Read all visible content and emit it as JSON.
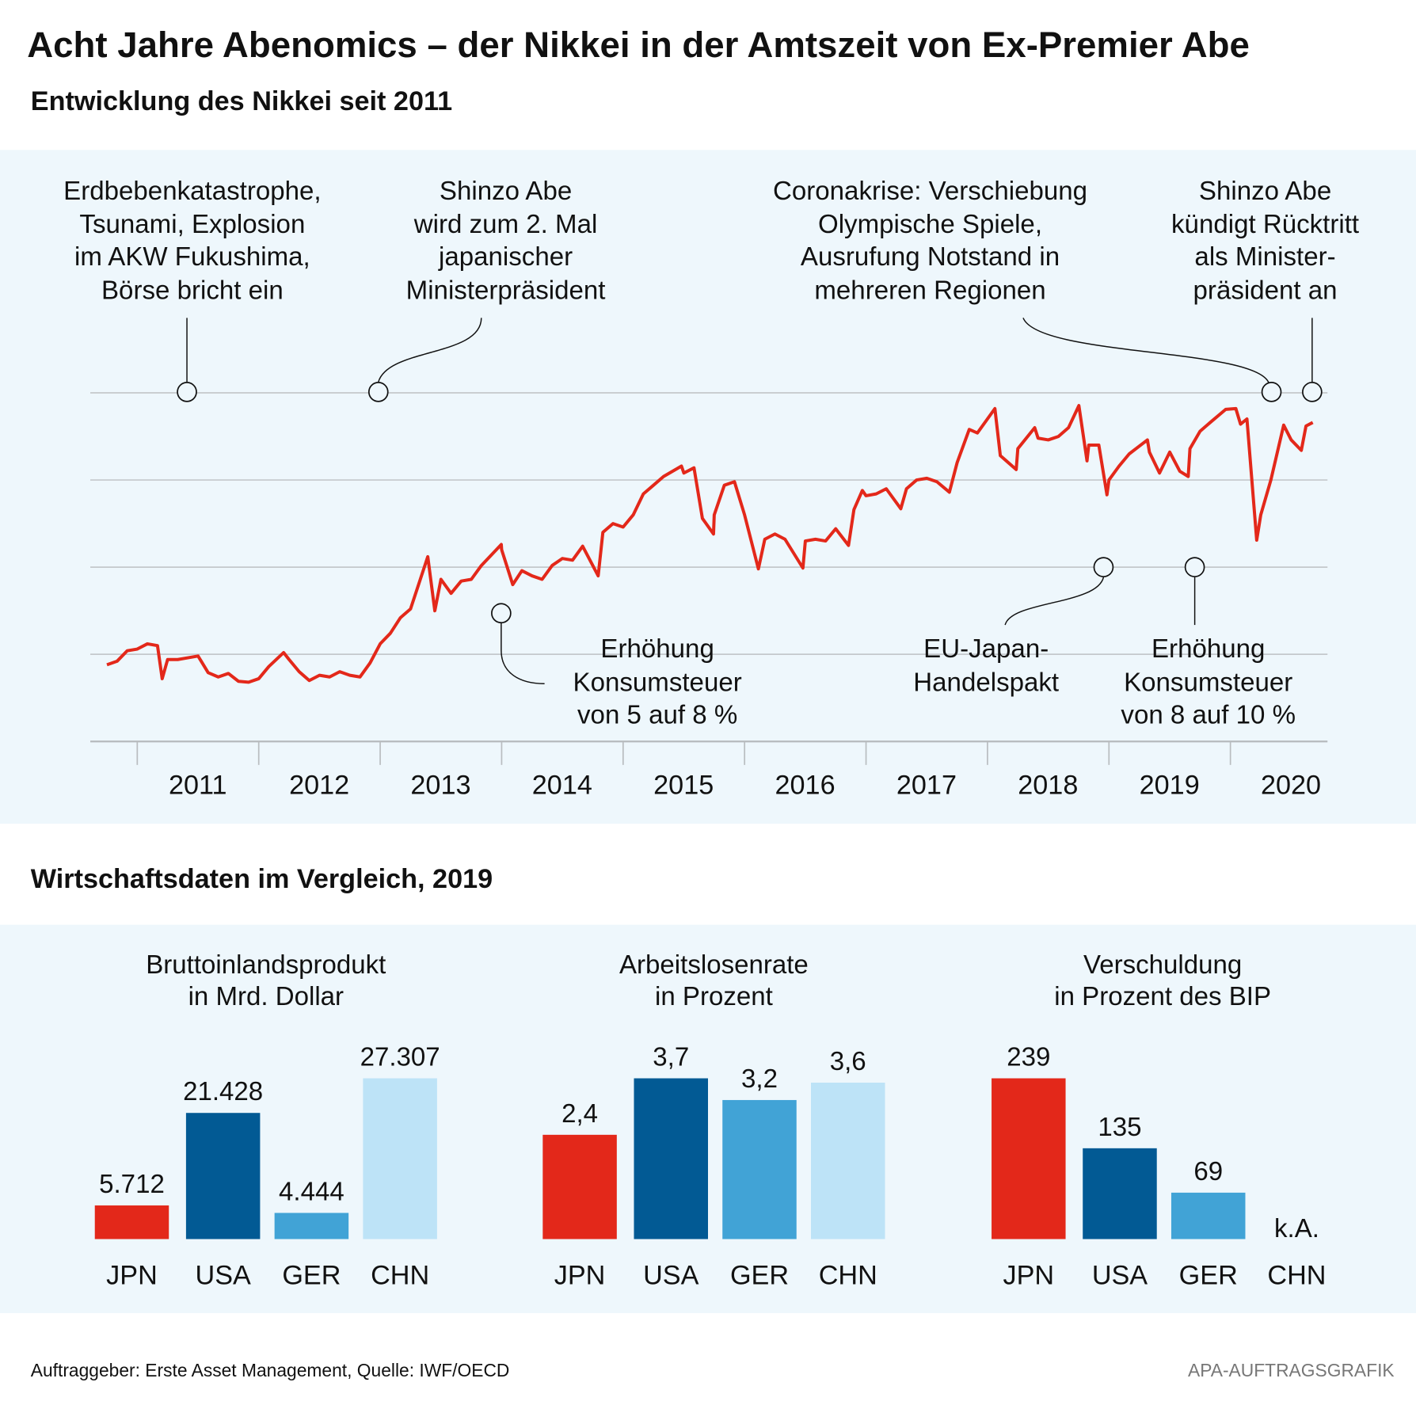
{
  "title": "Acht Jahre Abenomics – der Nikkei in der Amtszeit von Ex-Premier Abe",
  "section1_title": "Entwicklung des Nikkei seit 2011",
  "section2_title": "Wirtschaftsdaten im Vergleich, 2019",
  "annotations": {
    "fukushima": [
      "Erdbebenkatastrophe,",
      "Tsunami, Explosion",
      "im AKW Fukushima,",
      "Börse bricht ein"
    ],
    "abe_second_term": [
      "Shinzo Abe",
      "wird zum 2. Mal",
      "japanischer",
      "Ministerpräsident"
    ],
    "corona": [
      "Coronakrise: Verschiebung",
      "Olympische Spiele,",
      "Ausrufung Notstand in",
      "mehreren Regionen"
    ],
    "abe_resignation": [
      "Shinzo Abe",
      "kündigt Rücktritt",
      "als Minister-",
      "präsident an"
    ],
    "tax_2014": [
      "Erhöhung",
      "Konsumsteuer",
      "von 5 auf 8 %"
    ],
    "eu_japan": [
      "EU-Japan-",
      "Handelspakt"
    ],
    "tax_2019": [
      "Erhöhung",
      "Konsumsteuer",
      "von 8 auf 10 %"
    ]
  },
  "footer": {
    "source": "Auftraggeber: Erste Asset Management, Quelle: IWF/OECD",
    "credit": "APA-AUFTRAGSGRAFIK"
  },
  "colors": {
    "line": "#e3281a",
    "JPN": "#e3281a",
    "USA": "#025a94",
    "GER": "#41a3d6",
    "CHN": "#bde3f7",
    "panel": "#eef7fc",
    "grid": "#c4c8cb"
  },
  "chart_data": [
    {
      "type": "line",
      "title": "",
      "xlabel": "",
      "ylabel": "",
      "ylim": [
        5000,
        25000
      ],
      "grid": true,
      "x_ticks": [
        "2011",
        "2012",
        "2013",
        "2014",
        "2015",
        "2016",
        "2017",
        "2018",
        "2019",
        "2020"
      ],
      "series": [
        {
          "points": [
            [
              "2010-10-01",
              9400
            ],
            [
              "2010-11-01",
              9600
            ],
            [
              "2010-12-01",
              10200
            ],
            [
              "2011-01-01",
              10300
            ],
            [
              "2011-02-01",
              10600
            ],
            [
              "2011-03-01",
              10500
            ],
            [
              "2011-03-15",
              8600
            ],
            [
              "2011-04-01",
              9700
            ],
            [
              "2011-05-01",
              9700
            ],
            [
              "2011-06-01",
              9800
            ],
            [
              "2011-07-01",
              9900
            ],
            [
              "2011-08-01",
              8950
            ],
            [
              "2011-09-01",
              8700
            ],
            [
              "2011-10-01",
              8900
            ],
            [
              "2011-11-01",
              8450
            ],
            [
              "2011-12-01",
              8400
            ],
            [
              "2012-01-01",
              8600
            ],
            [
              "2012-02-01",
              9300
            ],
            [
              "2012-03-15",
              10100
            ],
            [
              "2012-04-01",
              9700
            ],
            [
              "2012-05-01",
              9000
            ],
            [
              "2012-06-01",
              8500
            ],
            [
              "2012-07-01",
              8800
            ],
            [
              "2012-08-01",
              8700
            ],
            [
              "2012-09-01",
              9000
            ],
            [
              "2012-10-01",
              8800
            ],
            [
              "2012-11-01",
              8700
            ],
            [
              "2012-12-01",
              9500
            ],
            [
              "2013-01-01",
              10600
            ],
            [
              "2013-02-01",
              11200
            ],
            [
              "2013-03-01",
              12100
            ],
            [
              "2013-04-01",
              12600
            ],
            [
              "2013-05-22",
              15600
            ],
            [
              "2013-06-13",
              12500
            ],
            [
              "2013-07-01",
              14300
            ],
            [
              "2013-08-01",
              13500
            ],
            [
              "2013-09-01",
              14200
            ],
            [
              "2013-10-01",
              14300
            ],
            [
              "2013-11-01",
              15100
            ],
            [
              "2013-12-30",
              16300
            ],
            [
              "2014-01-01",
              16000
            ],
            [
              "2014-02-04",
              14000
            ],
            [
              "2014-03-01",
              14800
            ],
            [
              "2014-04-01",
              14500
            ],
            [
              "2014-05-01",
              14300
            ],
            [
              "2014-06-01",
              15100
            ],
            [
              "2014-07-01",
              15500
            ],
            [
              "2014-08-01",
              15400
            ],
            [
              "2014-09-01",
              16200
            ],
            [
              "2014-10-17",
              14500
            ],
            [
              "2014-11-01",
              17000
            ],
            [
              "2014-12-01",
              17500
            ],
            [
              "2015-01-01",
              17300
            ],
            [
              "2015-02-01",
              18000
            ],
            [
              "2015-03-01",
              19200
            ],
            [
              "2015-04-01",
              19700
            ],
            [
              "2015-05-01",
              20200
            ],
            [
              "2015-06-24",
              20800
            ],
            [
              "2015-07-01",
              20400
            ],
            [
              "2015-08-01",
              20700
            ],
            [
              "2015-08-26",
              17800
            ],
            [
              "2015-09-29",
              16900
            ],
            [
              "2015-10-01",
              18000
            ],
            [
              "2015-11-01",
              19700
            ],
            [
              "2015-12-01",
              19900
            ],
            [
              "2016-01-01",
              18000
            ],
            [
              "2016-02-12",
              14900
            ],
            [
              "2016-03-01",
              16600
            ],
            [
              "2016-04-01",
              16900
            ],
            [
              "2016-05-01",
              16600
            ],
            [
              "2016-06-24",
              14950
            ],
            [
              "2016-07-01",
              16500
            ],
            [
              "2016-08-01",
              16600
            ],
            [
              "2016-09-01",
              16500
            ],
            [
              "2016-10-01",
              17200
            ],
            [
              "2016-11-09",
              16250
            ],
            [
              "2016-11-25",
              18300
            ],
            [
              "2016-12-20",
              19400
            ],
            [
              "2017-01-01",
              19100
            ],
            [
              "2017-02-01",
              19200
            ],
            [
              "2017-03-01",
              19500
            ],
            [
              "2017-04-14",
              18350
            ],
            [
              "2017-05-01",
              19500
            ],
            [
              "2017-06-01",
              20000
            ],
            [
              "2017-07-01",
              20100
            ],
            [
              "2017-08-01",
              19900
            ],
            [
              "2017-09-08",
              19300
            ],
            [
              "2017-10-01",
              21000
            ],
            [
              "2017-11-07",
              22900
            ],
            [
              "2017-12-01",
              22700
            ],
            [
              "2018-01-23",
              24100
            ],
            [
              "2018-02-09",
              21400
            ],
            [
              "2018-03-26",
              20600
            ],
            [
              "2018-04-01",
              21800
            ],
            [
              "2018-05-21",
              23000
            ],
            [
              "2018-06-01",
              22400
            ],
            [
              "2018-07-01",
              22300
            ],
            [
              "2018-08-01",
              22500
            ],
            [
              "2018-09-01",
              23000
            ],
            [
              "2018-10-02",
              24270
            ],
            [
              "2018-10-26",
              21100
            ],
            [
              "2018-11-01",
              22000
            ],
            [
              "2018-12-01",
              22000
            ],
            [
              "2018-12-25",
              19150
            ],
            [
              "2019-01-01",
              20000
            ],
            [
              "2019-02-01",
              20800
            ],
            [
              "2019-03-01",
              21500
            ],
            [
              "2019-04-25",
              22300
            ],
            [
              "2019-05-01",
              21600
            ],
            [
              "2019-06-01",
              20400
            ],
            [
              "2019-07-01",
              21600
            ],
            [
              "2019-08-01",
              20500
            ],
            [
              "2019-08-26",
              20200
            ],
            [
              "2019-09-01",
              21800
            ],
            [
              "2019-10-01",
              22800
            ],
            [
              "2019-11-01",
              23300
            ],
            [
              "2019-12-17",
              24050
            ],
            [
              "2020-01-17",
              24100
            ],
            [
              "2020-02-01",
              23200
            ],
            [
              "2020-02-20",
              23500
            ],
            [
              "2020-03-19",
              16550
            ],
            [
              "2020-04-01",
              18000
            ],
            [
              "2020-05-01",
              20000
            ],
            [
              "2020-06-09",
              23150
            ],
            [
              "2020-07-01",
              22300
            ],
            [
              "2020-07-31",
              21700
            ],
            [
              "2020-08-15",
              23100
            ],
            [
              "2020-09-05",
              23300
            ]
          ]
        }
      ],
      "events": [
        {
          "key": "fukushima",
          "date": "2011-03-11"
        },
        {
          "key": "abe_second_term",
          "date": "2012-12-26"
        },
        {
          "key": "tax_2014",
          "date": "2014-04-01"
        },
        {
          "key": "eu_japan",
          "date": "2018-07-17"
        },
        {
          "key": "tax_2019",
          "date": "2019-10-01"
        },
        {
          "key": "corona",
          "date": "2020-03-24"
        },
        {
          "key": "abe_resignation",
          "date": "2020-08-28"
        }
      ]
    },
    {
      "type": "bar",
      "title": "Bruttoinlandsprodukt",
      "subtitle": "in Mrd. Dollar",
      "categories": [
        "JPN",
        "USA",
        "GER",
        "CHN"
      ],
      "values": [
        5712,
        21428,
        4444,
        27307
      ],
      "labels": [
        "5.712",
        "21.428",
        "4.444",
        "27.307"
      ]
    },
    {
      "type": "bar",
      "title": "Arbeitslosenrate",
      "subtitle": "in Prozent",
      "categories": [
        "JPN",
        "USA",
        "GER",
        "CHN"
      ],
      "values": [
        2.4,
        3.7,
        3.2,
        3.6
      ],
      "labels": [
        "2,4",
        "3,7",
        "3,2",
        "3,6"
      ]
    },
    {
      "type": "bar",
      "title": "Verschuldung",
      "subtitle": "in Prozent des BIP",
      "categories": [
        "JPN",
        "USA",
        "GER",
        "CHN"
      ],
      "values": [
        239,
        135,
        69,
        null
      ],
      "labels": [
        "239",
        "135",
        "69",
        "k.A."
      ]
    }
  ]
}
